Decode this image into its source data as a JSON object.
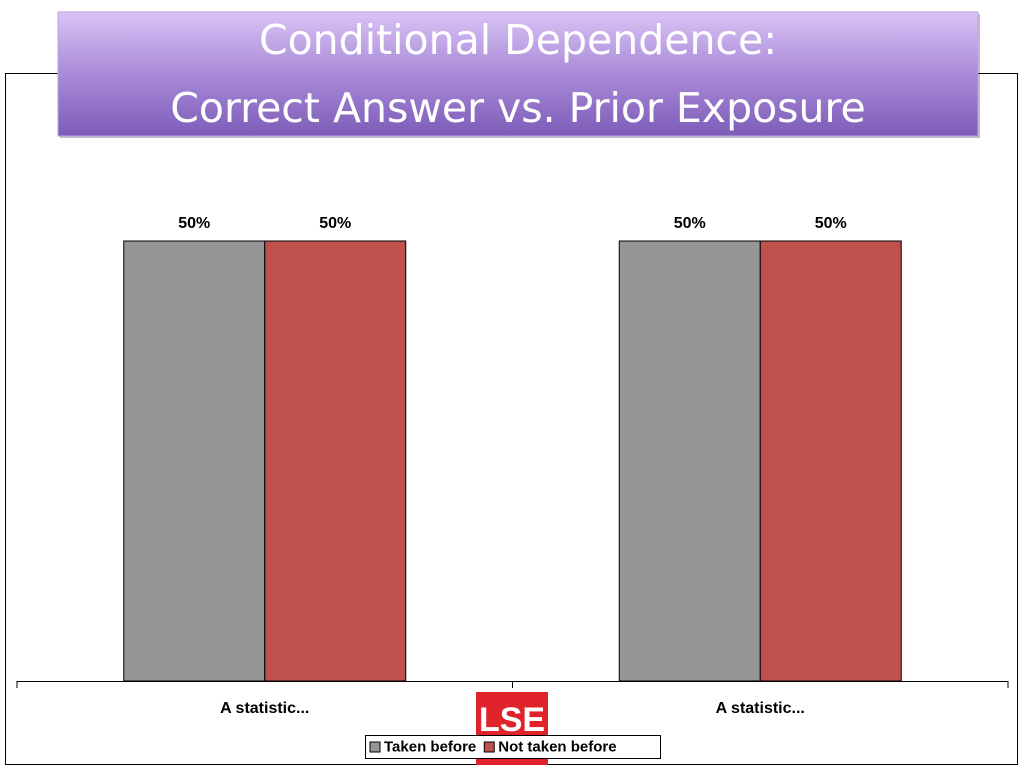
{
  "chart_data": {
    "type": "bar",
    "title": [
      "Conditional Dependence:",
      "Correct Answer vs. Prior Exposure"
    ],
    "categories": [
      "A statistic...",
      "A statistic..."
    ],
    "series": [
      {
        "name": "Taken before",
        "color": "#969696",
        "values": [
          50,
          50
        ],
        "value_labels": [
          "50%",
          "50%"
        ]
      },
      {
        "name": "Not taken before",
        "color": "#c0504d",
        "values": [
          50,
          50
        ],
        "value_labels": [
          "50%",
          "50%"
        ]
      }
    ],
    "logo": "LSE"
  }
}
